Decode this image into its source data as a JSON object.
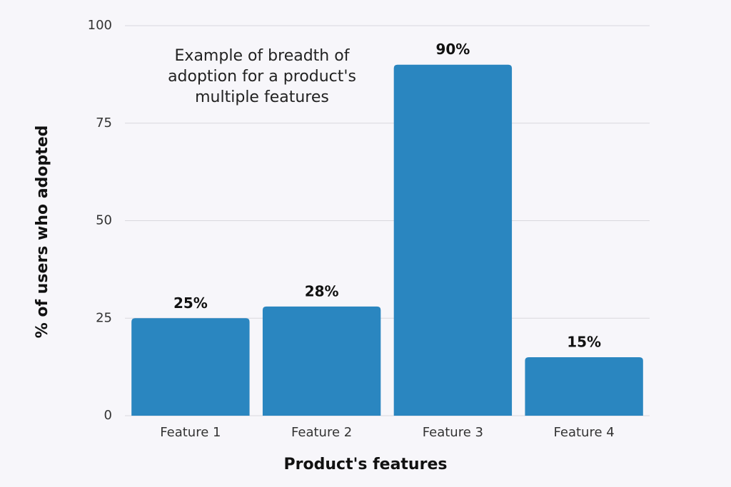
{
  "chart_data": {
    "type": "bar",
    "annotation": "Example of breadth of adoption for a product's multiple features",
    "x_label": "Product's features",
    "y_label": "% of users who adopted",
    "categories": [
      "Feature 1",
      "Feature 2",
      "Feature 3",
      "Feature 4"
    ],
    "values": [
      25,
      28,
      90,
      15
    ],
    "value_labels": [
      "25%",
      "28%",
      "90%",
      "15%"
    ],
    "color": "#2a86c0",
    "ylim": [
      0,
      100
    ],
    "yticks": [
      0,
      25,
      50,
      75,
      100
    ],
    "grid": true
  }
}
